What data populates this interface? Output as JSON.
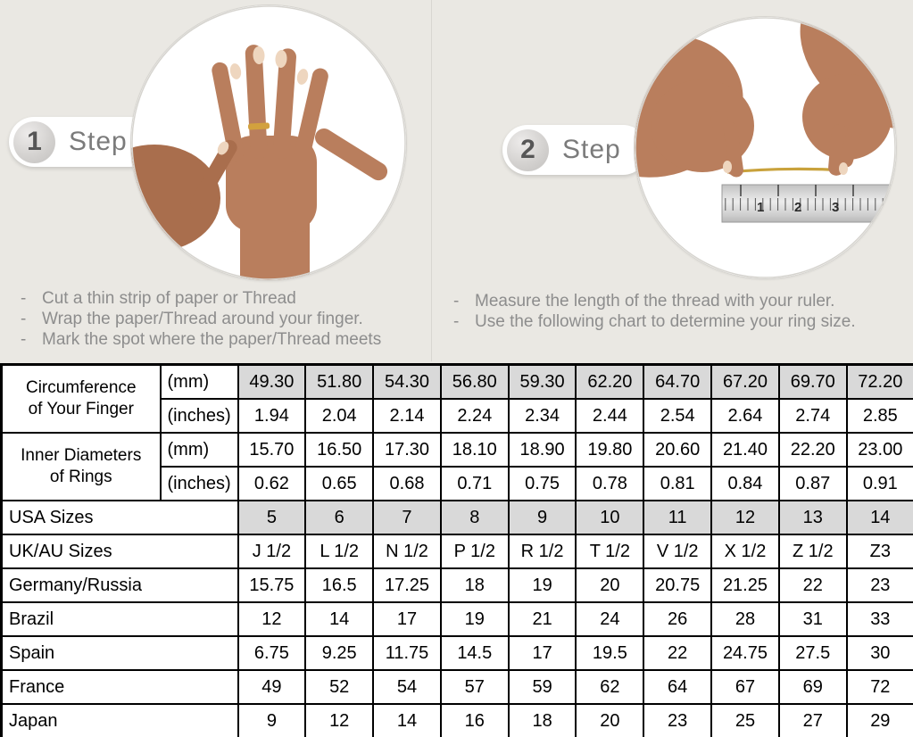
{
  "colors": {
    "page_background": "#eae8e3",
    "table_shade": "#d9d9d9",
    "table_border": "#000000",
    "step_text": "#7b7b7b",
    "bullet_text": "#8d8d8d",
    "skin_tone": "#b97e5d",
    "gold_thread": "#c9a23c"
  },
  "bullet_dash": "-",
  "steps": [
    {
      "number": "1",
      "label": "Step",
      "photo": "hand-with-ring-photo",
      "bullets": [
        "Cut a thin strip of paper or Thread",
        "Wrap the paper/Thread around your finger.",
        "Mark the spot where the paper/Thread meets"
      ]
    },
    {
      "number": "2",
      "label": "Step",
      "photo": "thread-and-ruler-photo",
      "bullets": [
        "Measure the length of the thread with your ruler.",
        "Use the following chart to determine your ring size."
      ]
    }
  ],
  "ruler": {
    "numbers": [
      "1",
      "2",
      "3"
    ]
  },
  "size_chart": {
    "grouped_rows": [
      {
        "label_lines": [
          "Circumference",
          "of Your Finger"
        ],
        "sub_rows": [
          {
            "unit": "(mm)",
            "shaded": true,
            "values": [
              "49.30",
              "51.80",
              "54.30",
              "56.80",
              "59.30",
              "62.20",
              "64.70",
              "67.20",
              "69.70",
              "72.20"
            ]
          },
          {
            "unit": "(inches)",
            "shaded": false,
            "values": [
              "1.94",
              "2.04",
              "2.14",
              "2.24",
              "2.34",
              "2.44",
              "2.54",
              "2.64",
              "2.74",
              "2.85"
            ]
          }
        ]
      },
      {
        "label_lines": [
          "Inner Diameters",
          "of Rings"
        ],
        "sub_rows": [
          {
            "unit": "(mm)",
            "shaded": false,
            "values": [
              "15.70",
              "16.50",
              "17.30",
              "18.10",
              "18.90",
              "19.80",
              "20.60",
              "21.40",
              "22.20",
              "23.00"
            ]
          },
          {
            "unit": "(inches)",
            "shaded": false,
            "values": [
              "0.62",
              "0.65",
              "0.68",
              "0.71",
              "0.75",
              "0.78",
              "0.81",
              "0.84",
              "0.87",
              "0.91"
            ]
          }
        ]
      }
    ],
    "simple_rows": [
      {
        "label": "USA Sizes",
        "shaded": true,
        "values": [
          "5",
          "6",
          "7",
          "8",
          "9",
          "10",
          "11",
          "12",
          "13",
          "14"
        ]
      },
      {
        "label": "UK/AU Sizes",
        "shaded": false,
        "values": [
          "J 1/2",
          "L 1/2",
          "N 1/2",
          "P 1/2",
          "R 1/2",
          "T 1/2",
          "V 1/2",
          "X 1/2",
          "Z 1/2",
          "Z3"
        ]
      },
      {
        "label": "Germany/Russia",
        "shaded": false,
        "values": [
          "15.75",
          "16.5",
          "17.25",
          "18",
          "19",
          "20",
          "20.75",
          "21.25",
          "22",
          "23"
        ]
      },
      {
        "label": "Brazil",
        "shaded": false,
        "values": [
          "12",
          "14",
          "17",
          "19",
          "21",
          "24",
          "26",
          "28",
          "31",
          "33"
        ]
      },
      {
        "label": "Spain",
        "shaded": false,
        "values": [
          "6.75",
          "9.25",
          "11.75",
          "14.5",
          "17",
          "19.5",
          "22",
          "24.75",
          "27.5",
          "30"
        ]
      },
      {
        "label": "France",
        "shaded": false,
        "values": [
          "49",
          "52",
          "54",
          "57",
          "59",
          "62",
          "64",
          "67",
          "69",
          "72"
        ]
      },
      {
        "label": "Japan",
        "shaded": false,
        "values": [
          "9",
          "12",
          "14",
          "16",
          "18",
          "20",
          "23",
          "25",
          "27",
          "29"
        ]
      }
    ]
  }
}
